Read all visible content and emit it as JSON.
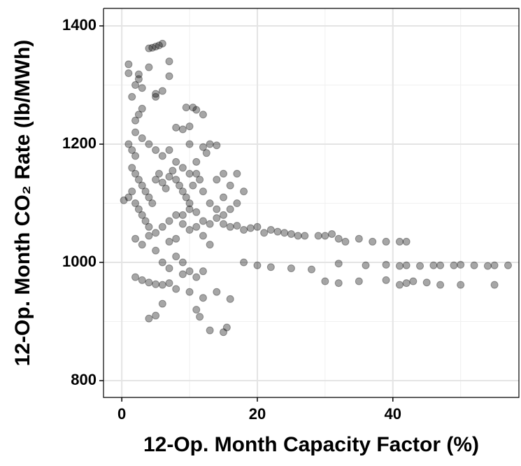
{
  "chart_data": {
    "type": "scatter",
    "xlabel": "12-Op. Month Capacity Factor (%)",
    "ylabel": "12-Op. Month CO₂ Rate (lb/MWh)",
    "xlim": [
      -2.7,
      58.6
    ],
    "ylim": [
      771.6,
      1429.6
    ],
    "xticks": [
      0,
      20,
      40
    ],
    "yticks": [
      800,
      1000,
      1200,
      1400
    ],
    "xminor": [
      10,
      30,
      50
    ],
    "yminor": [
      900,
      1100,
      1300
    ],
    "grid": true,
    "color": "#000000",
    "opacity": 0.35,
    "x": [
      5,
      5.5,
      6,
      4,
      4.5,
      7,
      7,
      1,
      1,
      2.5,
      2.5,
      4,
      5,
      5,
      3,
      6,
      1.5,
      2,
      9.5,
      10.5,
      11,
      12,
      8,
      9,
      10,
      12,
      13,
      14,
      10,
      12.5,
      15,
      16,
      17,
      18,
      19,
      20,
      21,
      22,
      23,
      24,
      25,
      26,
      27,
      29,
      30,
      31,
      32,
      33,
      35,
      37,
      39,
      41,
      42,
      18,
      20,
      22,
      25,
      28,
      32,
      36,
      39,
      41,
      42,
      44,
      46,
      47,
      49,
      50,
      52,
      54,
      55,
      57,
      3,
      4,
      5,
      6,
      7,
      2,
      30,
      32,
      35,
      39,
      41,
      42,
      43,
      45,
      47,
      50,
      55,
      4,
      5,
      11,
      11.5,
      13,
      15,
      15.5,
      16,
      12,
      14,
      8,
      10,
      6,
      1,
      1.5,
      2,
      1.5,
      2,
      2.5,
      3,
      3.5,
      4,
      4.5,
      5,
      5.5,
      6,
      6.5,
      7,
      7.5,
      8,
      8.5,
      9,
      9.5,
      10,
      10.5,
      11,
      11.5,
      12,
      13,
      14,
      3,
      3.5,
      4,
      5,
      6,
      7,
      8,
      9,
      10,
      11,
      12,
      13,
      14,
      2,
      3,
      4,
      2,
      1.5,
      2.5,
      6,
      7,
      8,
      9,
      10,
      11,
      4,
      5,
      3,
      2,
      2,
      3,
      2.5,
      8,
      9,
      7,
      10,
      11,
      12,
      9,
      6,
      5,
      13,
      15,
      16,
      15,
      17,
      16,
      18,
      14,
      15,
      17,
      9,
      10,
      11,
      12,
      8,
      7,
      1,
      0.3
    ],
    "values": [
      1365,
      1367,
      1370,
      1362,
      1363,
      1340,
      1315,
      1335,
      1320,
      1318,
      1310,
      1330,
      1285,
      1280,
      1295,
      1290,
      1280,
      1300,
      1262,
      1262,
      1258,
      1250,
      1228,
      1225,
      1230,
      1195,
      1200,
      1198,
      1200,
      1185,
      1065,
      1060,
      1062,
      1055,
      1058,
      1060,
      1050,
      1055,
      1052,
      1050,
      1048,
      1045,
      1045,
      1045,
      1045,
      1048,
      1040,
      1035,
      1040,
      1035,
      1035,
      1035,
      1035,
      1000,
      995,
      992,
      990,
      988,
      998,
      995,
      996,
      994,
      995,
      994,
      995,
      995,
      995,
      996,
      995,
      994,
      995,
      995,
      970,
      966,
      963,
      962,
      965,
      975,
      968,
      965,
      968,
      970,
      962,
      965,
      968,
      966,
      962,
      962,
      962,
      905,
      910,
      920,
      908,
      885,
      882,
      890,
      938,
      940,
      950,
      955,
      950,
      930,
      1200,
      1190,
      1180,
      1160,
      1150,
      1140,
      1130,
      1120,
      1110,
      1100,
      1140,
      1150,
      1135,
      1125,
      1145,
      1155,
      1140,
      1130,
      1120,
      1110,
      1100,
      1130,
      1150,
      1140,
      1120,
      1100,
      1090,
      1080,
      1070,
      1060,
      1050,
      1060,
      1070,
      1080,
      1065,
      1055,
      1060,
      1070,
      1065,
      1075,
      1040,
      1030,
      1045,
      1100,
      1120,
      1090,
      1180,
      1190,
      1170,
      1160,
      1150,
      1170,
      1200,
      1190,
      1210,
      1220,
      1240,
      1260,
      1250,
      1010,
      1000,
      990,
      985,
      975,
      985,
      980,
      1000,
      1020,
      1030,
      1110,
      1090,
      1080,
      1100,
      1130,
      1120,
      1140,
      1150,
      1150,
      1080,
      1090,
      1085,
      1045,
      1040,
      1035,
      1110,
      1105
    ]
  }
}
